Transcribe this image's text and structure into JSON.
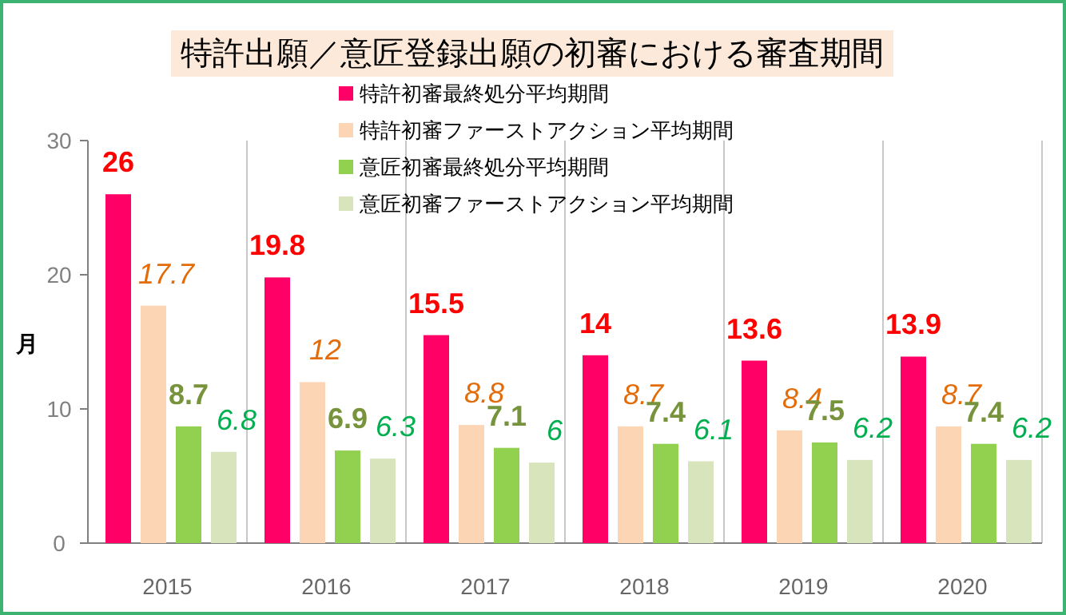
{
  "chart_data": {
    "type": "bar",
    "title": "特許出願／意匠登録出願の初審における審査期間",
    "ylabel": "月",
    "categories": [
      "2015",
      "2016",
      "2017",
      "2018",
      "2019",
      "2020"
    ],
    "series": [
      {
        "name": "特許初審最終処分平均期間",
        "color": "#ff0066",
        "values": [
          26,
          19.8,
          15.5,
          14,
          13.6,
          13.9
        ]
      },
      {
        "name": "特許初審ファーストアクション平均期間",
        "color": "#fcd5b4",
        "values": [
          17.7,
          12,
          8.8,
          8.7,
          8.4,
          8.7
        ]
      },
      {
        "name": "意匠初審最終処分平均期間",
        "color": "#92d050",
        "values": [
          8.7,
          6.9,
          7.1,
          7.4,
          7.5,
          7.4
        ]
      },
      {
        "name": "意匠初審ファーストアクション平均期間",
        "color": "#d8e4bc",
        "values": [
          6.8,
          6.3,
          6,
          6.1,
          6.2,
          6.2
        ]
      }
    ],
    "ylim": [
      0,
      30
    ],
    "yticks": [
      0,
      10,
      20,
      30
    ],
    "grid": "x",
    "legend": "top right",
    "data_labels": true
  }
}
